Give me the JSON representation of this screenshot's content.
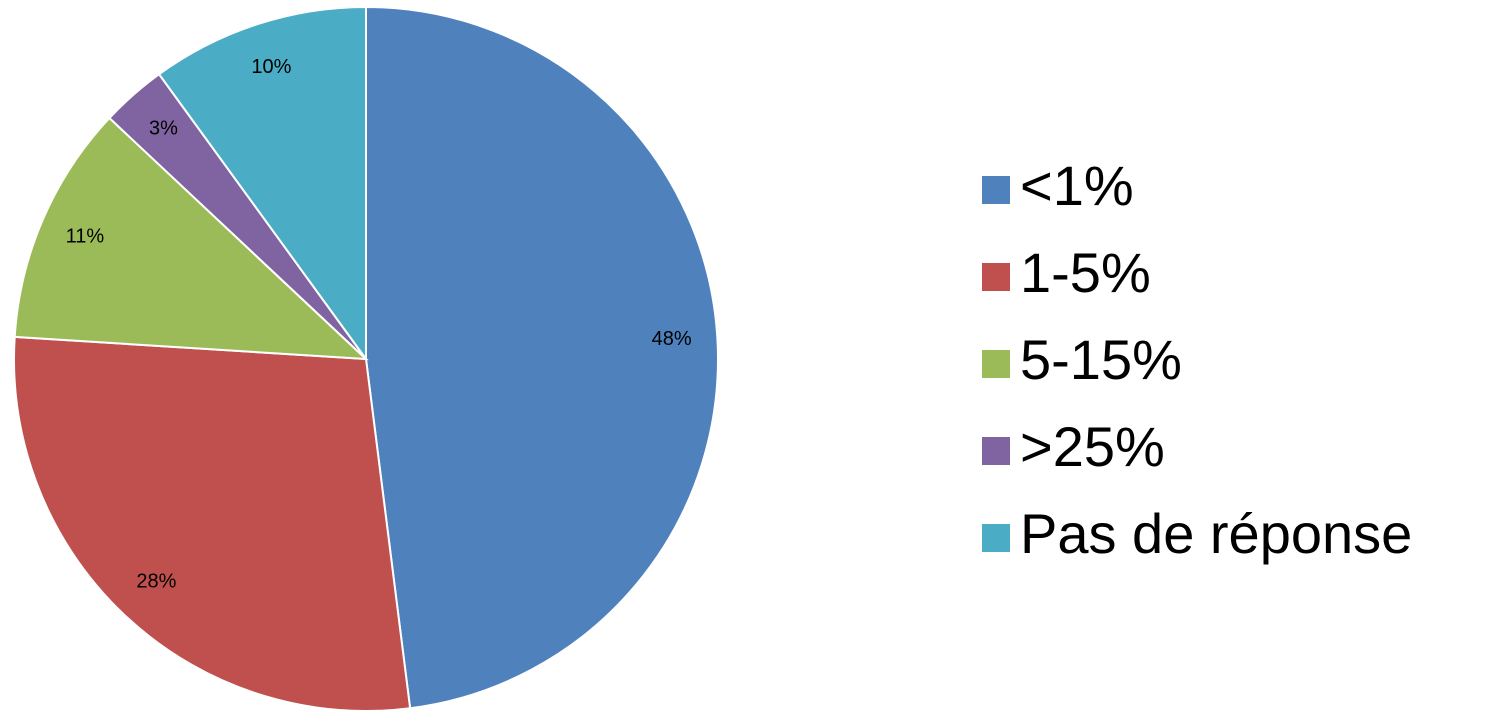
{
  "chart_data": {
    "type": "pie",
    "title": "",
    "legend_position": "right",
    "slices": [
      {
        "label": "<1%",
        "value": 48,
        "value_label": "48%",
        "color": "#4F81BD"
      },
      {
        "label": "1-5%",
        "value": 28,
        "value_label": "28%",
        "color": "#C0504D"
      },
      {
        "label": "5-15%",
        "value": 11,
        "value_label": "11%",
        "color": "#9BBB59"
      },
      {
        "label": ">25%",
        "value": 3,
        "value_label": "3%",
        "color": "#8064A2"
      },
      {
        "label": "Pas de réponse",
        "value": 10,
        "value_label": "10%",
        "color": "#4BACC6"
      }
    ]
  }
}
